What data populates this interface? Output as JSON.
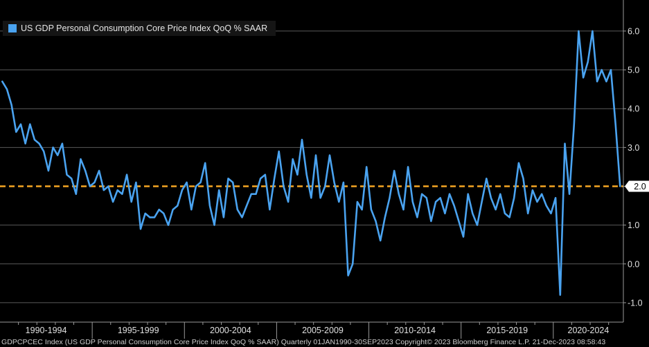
{
  "chart_data": {
    "type": "line",
    "title": "",
    "xlabel": "",
    "ylabel": "",
    "ylim": [
      -1.5,
      6.8
    ],
    "xlim": [
      1990.0,
      2023.8
    ],
    "y_ticks": [
      6.0,
      5.0,
      4.0,
      3.0,
      2.0,
      1.0,
      0.0,
      -1.0
    ],
    "y_tick_labels": [
      "6.0",
      "5.0",
      "4.0",
      "3.0",
      "2.0",
      "1.0",
      "0.0",
      "-1.0"
    ],
    "x_tick_labels": [
      "1990-1994",
      "1995-1999",
      "2000-2004",
      "2005-2009",
      "2010-2014",
      "2015-2019",
      "2020-2024"
    ],
    "grid": true,
    "legend_position": "top-left",
    "reference_line": {
      "value": 2.0,
      "label": "2.0",
      "color": "#f5a623",
      "style": "dashed"
    },
    "series": [
      {
        "name": "US GDP Personal Consumption Core Price Index QoQ % SAAR",
        "color": "#4aa3f0",
        "x": [
          "1990Q1",
          "1990Q2",
          "1990Q3",
          "1990Q4",
          "1991Q1",
          "1991Q2",
          "1991Q3",
          "1991Q4",
          "1992Q1",
          "1992Q2",
          "1992Q3",
          "1992Q4",
          "1993Q1",
          "1993Q2",
          "1993Q3",
          "1993Q4",
          "1994Q1",
          "1994Q2",
          "1994Q3",
          "1994Q4",
          "1995Q1",
          "1995Q2",
          "1995Q3",
          "1995Q4",
          "1996Q1",
          "1996Q2",
          "1996Q3",
          "1996Q4",
          "1997Q1",
          "1997Q2",
          "1997Q3",
          "1997Q4",
          "1998Q1",
          "1998Q2",
          "1998Q3",
          "1998Q4",
          "1999Q1",
          "1999Q2",
          "1999Q3",
          "1999Q4",
          "2000Q1",
          "2000Q2",
          "2000Q3",
          "2000Q4",
          "2001Q1",
          "2001Q2",
          "2001Q3",
          "2001Q4",
          "2002Q1",
          "2002Q2",
          "2002Q3",
          "2002Q4",
          "2003Q1",
          "2003Q2",
          "2003Q3",
          "2003Q4",
          "2004Q1",
          "2004Q2",
          "2004Q3",
          "2004Q4",
          "2005Q1",
          "2005Q2",
          "2005Q3",
          "2005Q4",
          "2006Q1",
          "2006Q2",
          "2006Q3",
          "2006Q4",
          "2007Q1",
          "2007Q2",
          "2007Q3",
          "2007Q4",
          "2008Q1",
          "2008Q2",
          "2008Q3",
          "2008Q4",
          "2009Q1",
          "2009Q2",
          "2009Q3",
          "2009Q4",
          "2010Q1",
          "2010Q2",
          "2010Q3",
          "2010Q4",
          "2011Q1",
          "2011Q2",
          "2011Q3",
          "2011Q4",
          "2012Q1",
          "2012Q2",
          "2012Q3",
          "2012Q4",
          "2013Q1",
          "2013Q2",
          "2013Q3",
          "2013Q4",
          "2014Q1",
          "2014Q2",
          "2014Q3",
          "2014Q4",
          "2015Q1",
          "2015Q2",
          "2015Q3",
          "2015Q4",
          "2016Q1",
          "2016Q2",
          "2016Q3",
          "2016Q4",
          "2017Q1",
          "2017Q2",
          "2017Q3",
          "2017Q4",
          "2018Q1",
          "2018Q2",
          "2018Q3",
          "2018Q4",
          "2019Q1",
          "2019Q2",
          "2019Q3",
          "2019Q4",
          "2020Q1",
          "2020Q2",
          "2020Q3",
          "2020Q4",
          "2021Q1",
          "2021Q2",
          "2021Q3",
          "2021Q4",
          "2022Q1",
          "2022Q2",
          "2022Q3",
          "2022Q4",
          "2023Q1",
          "2023Q2",
          "2023Q3"
        ],
        "values": [
          4.7,
          4.5,
          4.1,
          3.4,
          3.6,
          3.1,
          3.6,
          3.2,
          3.1,
          2.9,
          2.4,
          3.0,
          2.8,
          3.1,
          2.3,
          2.2,
          1.8,
          2.7,
          2.4,
          2.0,
          2.1,
          2.4,
          1.9,
          2.0,
          1.6,
          1.9,
          1.8,
          2.3,
          1.6,
          2.1,
          0.9,
          1.3,
          1.2,
          1.2,
          1.4,
          1.3,
          1.0,
          1.4,
          1.5,
          1.9,
          2.1,
          1.4,
          2.0,
          2.1,
          2.6,
          1.5,
          1.0,
          1.9,
          1.2,
          2.2,
          2.1,
          1.4,
          1.2,
          1.5,
          1.8,
          1.8,
          2.2,
          2.3,
          1.4,
          2.2,
          2.9,
          2.0,
          1.6,
          2.7,
          2.3,
          3.2,
          2.3,
          1.7,
          2.8,
          1.7,
          2.0,
          2.8,
          2.1,
          1.6,
          2.1,
          -0.3,
          0.0,
          1.6,
          1.4,
          2.5,
          1.4,
          1.1,
          0.6,
          1.2,
          1.7,
          2.4,
          1.8,
          1.4,
          2.5,
          1.6,
          1.2,
          1.8,
          1.7,
          1.1,
          1.6,
          1.7,
          1.3,
          1.8,
          1.5,
          1.1,
          0.7,
          1.8,
          1.3,
          1.0,
          1.6,
          2.2,
          1.7,
          1.4,
          1.8,
          1.3,
          1.2,
          1.7,
          2.6,
          2.2,
          1.3,
          1.9,
          1.6,
          1.8,
          1.5,
          1.3,
          1.7,
          -0.8,
          3.1,
          1.8,
          3.6,
          6.0,
          4.8,
          5.2,
          6.0,
          4.7,
          5.0,
          4.7,
          5.0,
          3.6,
          2.0
        ]
      }
    ]
  },
  "footer": {
    "text": "GDPCPCEC Index (US GDP Personal Consumption Core Price Index QoQ % SAAR)  Quarterly 01JAN1990-30SEP2023  Copyright© 2023 Bloomberg Finance L.P.  21-Dec-2023 08:58:43"
  },
  "colors": {
    "background": "#000000",
    "series": "#4aa3f0",
    "reference": "#f5a623",
    "grid": "#5a5a5a",
    "axis": "#9a9a9a"
  }
}
